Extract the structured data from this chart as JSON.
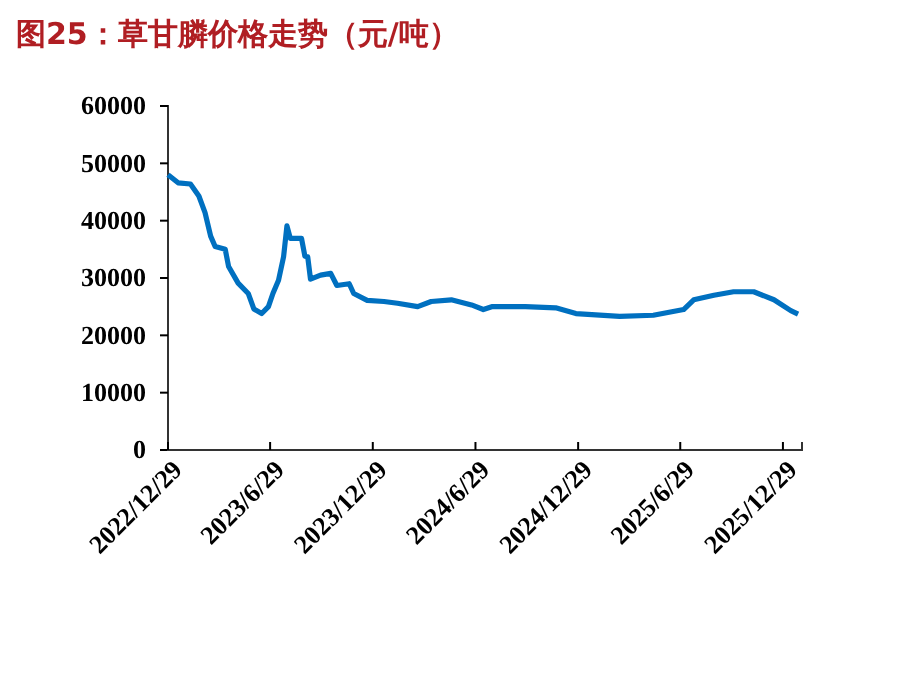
{
  "chart_data": {
    "type": "line",
    "title": "图25：草甘膦价格走势（元/吨）",
    "x": [
      "2022-12-29",
      "2023-01-16",
      "2023-02-07",
      "2023-02-22",
      "2023-03-05",
      "2023-03-15",
      "2023-03-23",
      "2023-04-10",
      "2023-04-16",
      "2023-05-03",
      "2023-05-21",
      "2023-05-31",
      "2023-06-14",
      "2023-06-26",
      "2023-07-04",
      "2023-07-14",
      "2023-07-23",
      "2023-07-29",
      "2023-08-04",
      "2023-08-24",
      "2023-08-30",
      "2023-09-04",
      "2023-09-09",
      "2023-09-27",
      "2023-10-15",
      "2023-10-26",
      "2023-11-17",
      "2023-11-25",
      "2023-12-19",
      "2024-01-18",
      "2024-02-11",
      "2024-03-18",
      "2024-04-11",
      "2024-05-17",
      "2024-06-22",
      "2024-07-13",
      "2024-07-28",
      "2024-09-26",
      "2024-11-19",
      "2024-12-25",
      "2025-03-13",
      "2025-05-12",
      "2025-07-05",
      "2025-07-23",
      "2025-08-28",
      "2025-10-02",
      "2025-11-07",
      "2025-12-13",
      "2026-01-12",
      "2026-01-25"
    ],
    "series": [
      {
        "color": "#0070c0",
        "values": [
          48000,
          46600,
          46400,
          44300,
          41400,
          37300,
          35500,
          35000,
          32000,
          29100,
          27300,
          24600,
          23800,
          25000,
          27300,
          29600,
          33700,
          39100,
          36900,
          36900,
          33800,
          33700,
          29800,
          30500,
          30800,
          28700,
          29000,
          27300,
          26100,
          25900,
          25600,
          25000,
          25900,
          26200,
          25300,
          24500,
          25000,
          25000,
          24800,
          23800,
          23300,
          23500,
          24500,
          26200,
          27000,
          27600,
          27600,
          26200,
          24300,
          23700
        ]
      }
    ],
    "xlim": [
      "2022-12-29",
      "2026-02-01"
    ],
    "xticks": [
      {
        "value": "2022-12-29",
        "label": "2022/12/29"
      },
      {
        "value": "2023-06-29",
        "label": "2023/6/29"
      },
      {
        "value": "2023-12-29",
        "label": "2023/12/29"
      },
      {
        "value": "2024-06-29",
        "label": "2024/6/29"
      },
      {
        "value": "2024-12-29",
        "label": "2024/12/29"
      },
      {
        "value": "2025-06-29",
        "label": "2025/6/29"
      },
      {
        "value": "2025-12-29",
        "label": "2025/12/29"
      }
    ],
    "ylim": [
      0,
      60000
    ],
    "yticks": [
      0,
      10000,
      20000,
      30000,
      40000,
      50000,
      60000
    ],
    "grid": false,
    "marker": "none",
    "line_style": "solid"
  }
}
